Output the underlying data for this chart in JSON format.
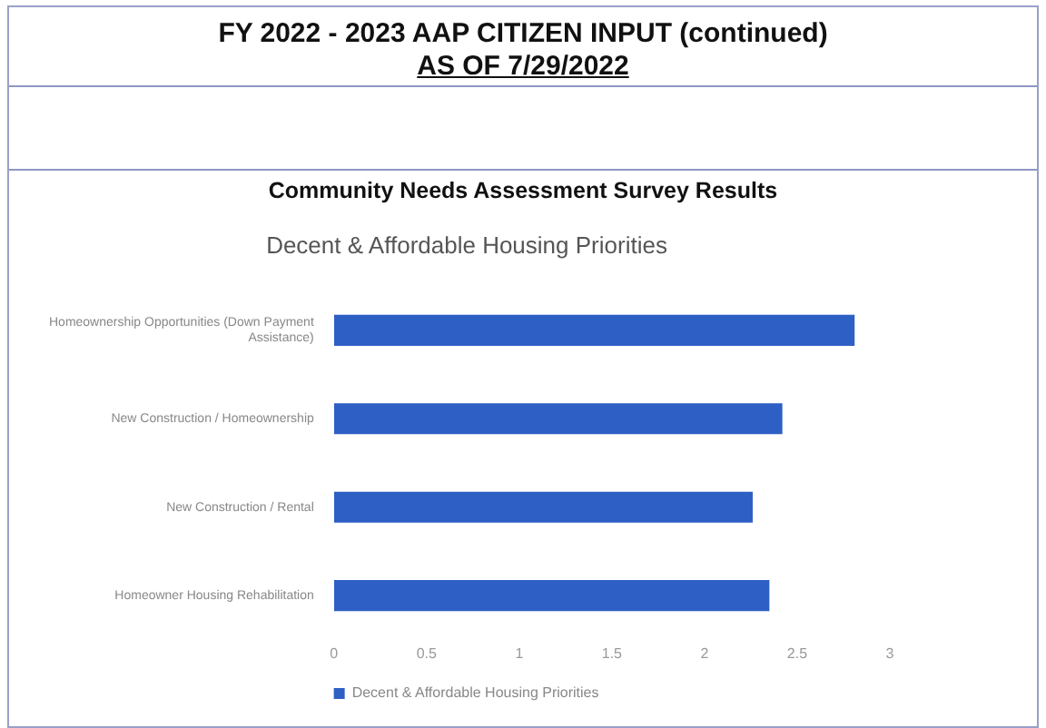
{
  "chart_data": {
    "type": "bar",
    "orientation": "horizontal",
    "title": "Decent & Affordable Housing Priorities",
    "annotations": [
      "FY 2022 - 2023 AAP CITIZEN INPUT (continued)",
      "AS OF 7/29/2022",
      "Community Needs Assessment Survey Results"
    ],
    "categories": [
      "Homeownership Opportunities (Down Payment Assistance)",
      "New Construction / Homeownership",
      "New Construction / Rental",
      "Homeowner Housing Rehabilitation"
    ],
    "series": [
      {
        "name": "Decent & Affordable Housing Priorities",
        "color": "#2e5fc4",
        "values": [
          2.81,
          2.42,
          2.26,
          2.35
        ]
      }
    ],
    "xlim": [
      0,
      3
    ],
    "xticks": [
      0,
      0.5,
      1,
      1.5,
      2,
      2.5,
      3
    ],
    "grid": false,
    "legend": "bottom"
  }
}
